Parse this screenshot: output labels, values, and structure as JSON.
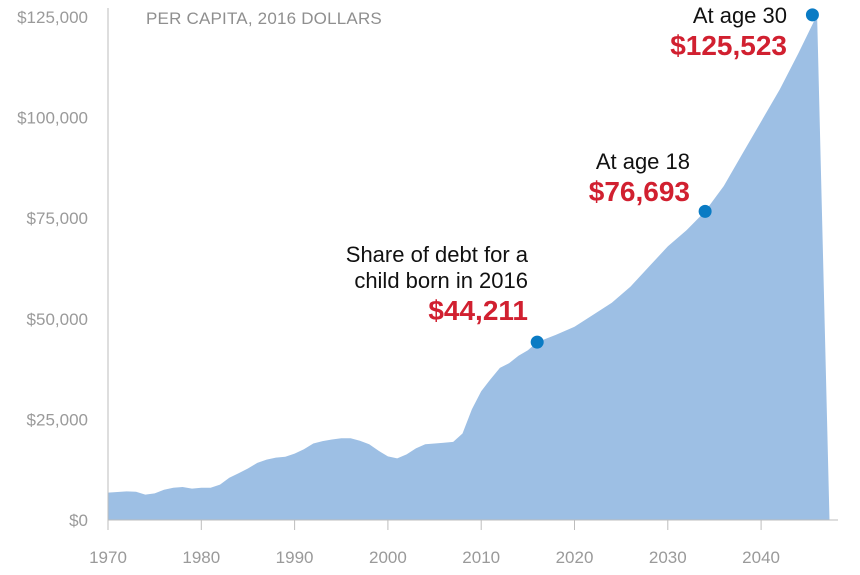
{
  "chart_data": {
    "type": "area",
    "title": "",
    "subtitle": "PER CAPITA, 2016 DOLLARS",
    "xlabel": "",
    "ylabel": "",
    "xlim": [
      1970,
      2046
    ],
    "ylim": [
      0,
      125000
    ],
    "x_ticks": [
      1970,
      1980,
      1990,
      2000,
      2010,
      2020,
      2030,
      2040
    ],
    "x_tick_labels": [
      "1970",
      "1980",
      "1990",
      "2000",
      "2010",
      "2020",
      "2030",
      "2040"
    ],
    "y_ticks": [
      0,
      25000,
      50000,
      75000,
      100000,
      125000
    ],
    "y_tick_labels": [
      "$0",
      "$25,000",
      "$50,000",
      "$75,000",
      "$100,000",
      "$125,000"
    ],
    "grid": false,
    "colors": {
      "area": "#9dbfe4",
      "marker": "#0a7bc4",
      "axis": "#bdbdbd",
      "highlight": "#d12030",
      "tick_text": "#9a9a9a"
    },
    "x": [
      1970,
      1972,
      1973,
      1974,
      1975,
      1976,
      1977,
      1978,
      1979,
      1980,
      1981,
      1982,
      1983,
      1984,
      1985,
      1986,
      1987,
      1988,
      1989,
      1990,
      1991,
      1992,
      1993,
      1994,
      1995,
      1996,
      1997,
      1998,
      1999,
      2000,
      2001,
      2002,
      2003,
      2004,
      2005,
      2006,
      2007,
      2008,
      2009,
      2010,
      2011,
      2012,
      2013,
      2014,
      2015,
      2016,
      2018,
      2020,
      2022,
      2024,
      2026,
      2028,
      2030,
      2032,
      2034,
      2036,
      2038,
      2040,
      2042,
      2044,
      2046
    ],
    "values": [
      6800,
      7100,
      7000,
      6300,
      6600,
      7500,
      8000,
      8200,
      7800,
      8000,
      8000,
      8800,
      10500,
      11600,
      12800,
      14200,
      15000,
      15500,
      15700,
      16500,
      17600,
      19000,
      19600,
      20000,
      20300,
      20300,
      19700,
      18800,
      17200,
      15800,
      15300,
      16300,
      17800,
      18800,
      19000,
      19200,
      19400,
      21500,
      27500,
      32000,
      35000,
      37800,
      39000,
      40800,
      42200,
      44211,
      46000,
      48000,
      51000,
      54000,
      58000,
      63000,
      68000,
      72000,
      76693,
      83000,
      91000,
      99000,
      107000,
      116000,
      125523
    ],
    "markers": [
      {
        "x": 2016,
        "y": 44211
      },
      {
        "x": 2034,
        "y": 76693
      },
      {
        "x": 2045.5,
        "y": 125523
      }
    ],
    "annotations": [
      {
        "lines": [
          "Share of debt for a",
          "child born in 2016"
        ],
        "value": "$44,211"
      },
      {
        "lines": [
          "At age 18"
        ],
        "value": "$76,693"
      },
      {
        "lines": [
          "At age 30"
        ],
        "value": "$125,523"
      }
    ]
  }
}
